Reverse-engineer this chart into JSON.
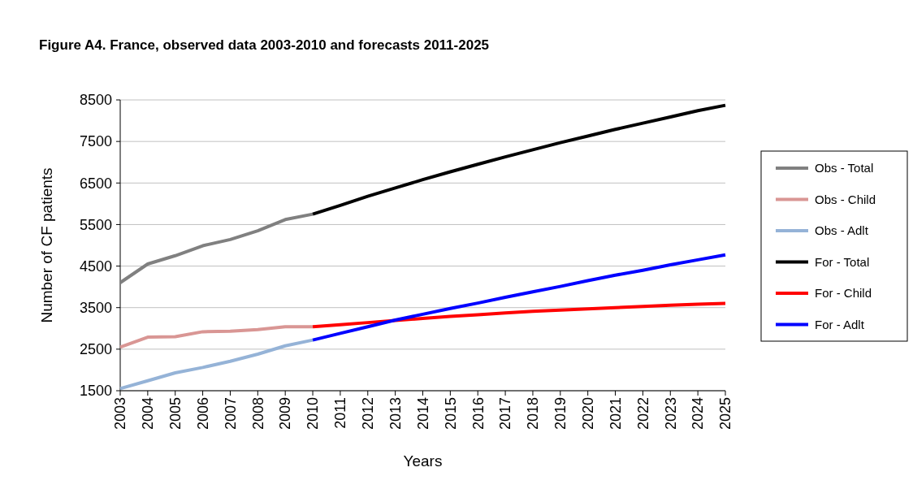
{
  "chart_data": {
    "type": "line",
    "title": "Figure A4. France, observed data 2003-2010 and forecasts 2011-2025",
    "xlabel": "Years",
    "ylabel": "Number of CF patients",
    "xlim": [
      2003,
      2025
    ],
    "xticks": [
      2003,
      2004,
      2005,
      2006,
      2007,
      2008,
      2009,
      2010,
      2011,
      2012,
      2013,
      2014,
      2015,
      2016,
      2017,
      2018,
      2019,
      2020,
      2021,
      2022,
      2023,
      2024,
      2025
    ],
    "ylim": [
      1500,
      8500
    ],
    "yticks": [
      1500,
      2500,
      3500,
      4500,
      5500,
      6500,
      7500,
      8500
    ],
    "grid": "y",
    "legend": "right",
    "marker": "none",
    "line_style": "solid",
    "series": [
      {
        "name": "Obs - Total",
        "color": "#808080",
        "x": [
          2003,
          2004,
          2005,
          2006,
          2007,
          2008,
          2009,
          2010
        ],
        "values": [
          4100,
          4550,
          4750,
          4990,
          5140,
          5350,
          5620,
          5750
        ]
      },
      {
        "name": "Obs - Child",
        "color": "#d99694",
        "x": [
          2003,
          2004,
          2005,
          2006,
          2007,
          2008,
          2009,
          2010
        ],
        "values": [
          2550,
          2790,
          2800,
          2920,
          2930,
          2970,
          3040,
          3040
        ]
      },
      {
        "name": "Obs - Adlt",
        "color": "#95b3d7",
        "x": [
          2003,
          2004,
          2005,
          2006,
          2007,
          2008,
          2009,
          2010
        ],
        "values": [
          1550,
          1740,
          1930,
          2060,
          2210,
          2380,
          2580,
          2720
        ]
      },
      {
        "name": "For - Total",
        "color": "#000000",
        "x": [
          2010,
          2011,
          2012,
          2013,
          2014,
          2015,
          2016,
          2017,
          2018,
          2019,
          2020,
          2021,
          2022,
          2023,
          2024,
          2025
        ],
        "values": [
          5750,
          5960,
          6180,
          6380,
          6580,
          6770,
          6950,
          7130,
          7300,
          7470,
          7630,
          7790,
          7940,
          8090,
          8240,
          8370
        ]
      },
      {
        "name": "For - Child",
        "color": "#ff0000",
        "x": [
          2010,
          2011,
          2012,
          2013,
          2014,
          2015,
          2016,
          2017,
          2018,
          2019,
          2020,
          2021,
          2022,
          2023,
          2024,
          2025
        ],
        "values": [
          3040,
          3090,
          3140,
          3190,
          3240,
          3290,
          3330,
          3370,
          3410,
          3440,
          3470,
          3500,
          3530,
          3560,
          3580,
          3600
        ]
      },
      {
        "name": "For - Adlt",
        "color": "#0000ff",
        "x": [
          2010,
          2011,
          2012,
          2013,
          2014,
          2015,
          2016,
          2017,
          2018,
          2019,
          2020,
          2021,
          2022,
          2023,
          2024,
          2025
        ],
        "values": [
          2720,
          2880,
          3040,
          3200,
          3340,
          3480,
          3610,
          3750,
          3880,
          4010,
          4150,
          4280,
          4400,
          4530,
          4650,
          4770
        ]
      }
    ]
  }
}
